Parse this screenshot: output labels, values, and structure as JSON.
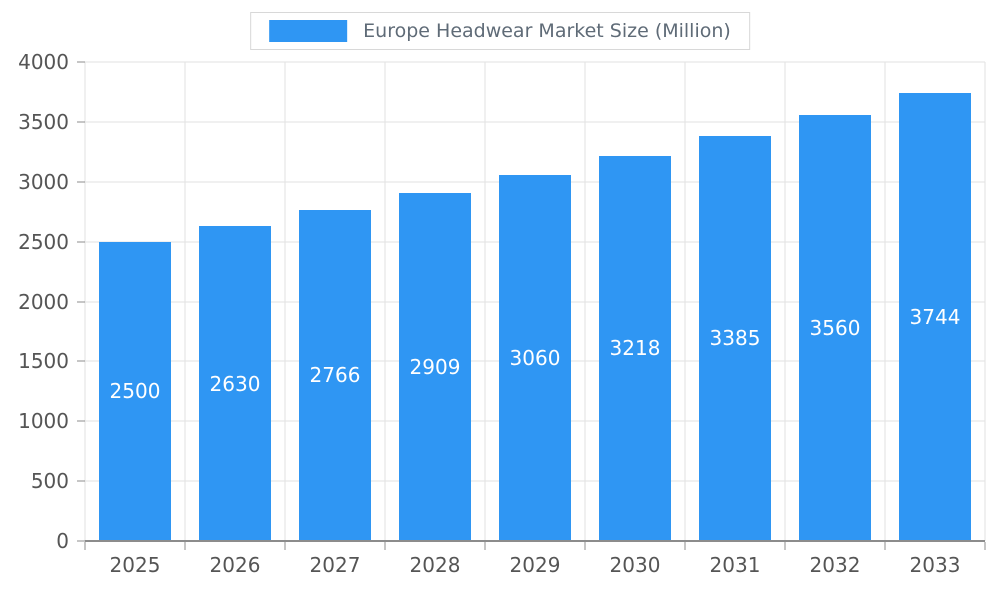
{
  "chart_data": {
    "type": "bar",
    "title": "Europe Headwear Market Size (Million)",
    "series_name": "Europe Headwear Market Size (Million)",
    "categories": [
      "2025",
      "2026",
      "2027",
      "2028",
      "2029",
      "2030",
      "2031",
      "2032",
      "2033"
    ],
    "values": [
      2500,
      2630,
      2766,
      2909,
      3060,
      3218,
      3385,
      3560,
      3744
    ],
    "xlabel": "",
    "ylabel": "",
    "ylim": [
      0,
      4000
    ],
    "yticks": [
      0,
      500,
      1000,
      1500,
      2000,
      2500,
      3000,
      3500,
      4000
    ],
    "grid": true,
    "legend_position": "top",
    "value_labels_inside_bars": true
  },
  "palette": {
    "bar": "#2f96f3",
    "bar_label": "#ffffff",
    "grid": "#e2e2e2",
    "axis": "#8c8c8c",
    "text": "#555555",
    "legend_text": "#5f6b77",
    "legend_border": "#d8d8d8",
    "background": "#ffffff"
  }
}
